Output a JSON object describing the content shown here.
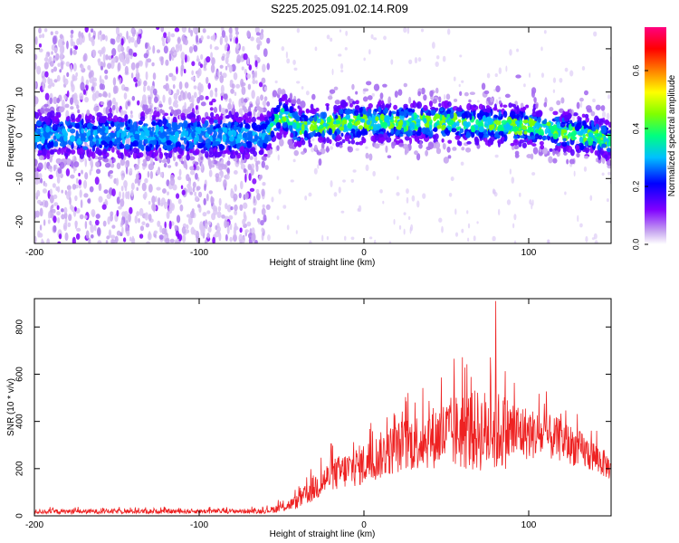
{
  "title": "S225.2025.091.02.14.R09",
  "chart_data": [
    {
      "type": "heatmap",
      "title": "",
      "xlabel": "Height of straight line (km)",
      "ylabel": "Frequency (Hz)",
      "xlim": [
        -200,
        150
      ],
      "ylim": [
        -25,
        25
      ],
      "xticks": [
        -200,
        -100,
        0,
        100
      ],
      "yticks": [
        -20,
        -10,
        0,
        10,
        20
      ],
      "colorbar": {
        "label": "Normalized spectral amplitude",
        "range": [
          0,
          0.75
        ],
        "ticks": [
          0.0,
          0.2,
          0.4,
          0.6
        ],
        "tick_labels": [
          "0.0",
          "0.2",
          "0.4",
          "0.6"
        ],
        "colors": [
          "#ffffff",
          "#c7a6f0",
          "#8000ff",
          "#0000ff",
          "#00c0ff",
          "#00ff80",
          "#80ff00",
          "#ffff00",
          "#ff8000",
          "#ff0000",
          "#ff0080"
        ]
      },
      "ridge_center_hz": [
        {
          "x": -200,
          "y": 0
        },
        {
          "x": -60,
          "y": 0
        },
        {
          "x": -50,
          "y": 5
        },
        {
          "x": -40,
          "y": 2
        },
        {
          "x": 0,
          "y": 3
        },
        {
          "x": 50,
          "y": 3
        },
        {
          "x": 100,
          "y": 2
        },
        {
          "x": 150,
          "y": -1
        }
      ]
    },
    {
      "type": "line",
      "title": "",
      "xlabel": "Height of straight line (km)",
      "ylabel": "SNR (10 * v/v)",
      "xlim": [
        -200,
        150
      ],
      "ylim": [
        0,
        920
      ],
      "xticks": [
        -200,
        -100,
        0,
        100
      ],
      "yticks": [
        0,
        200,
        400,
        600,
        800
      ],
      "series": [
        {
          "color": "#ee2222",
          "envelope": [
            {
              "x": -200,
              "mean": 18,
              "spread": 10
            },
            {
              "x": -60,
              "mean": 20,
              "spread": 10
            },
            {
              "x": -50,
              "mean": 35,
              "spread": 20
            },
            {
              "x": -40,
              "mean": 60,
              "spread": 30
            },
            {
              "x": -30,
              "mean": 120,
              "spread": 60
            },
            {
              "x": -20,
              "mean": 170,
              "spread": 70
            },
            {
              "x": 0,
              "mean": 220,
              "spread": 90
            },
            {
              "x": 20,
              "mean": 290,
              "spread": 110
            },
            {
              "x": 40,
              "mean": 330,
              "spread": 130
            },
            {
              "x": 60,
              "mean": 360,
              "spread": 170
            },
            {
              "x": 80,
              "mean": 360,
              "spread": 180
            },
            {
              "x": 100,
              "mean": 350,
              "spread": 110
            },
            {
              "x": 120,
              "mean": 320,
              "spread": 90
            },
            {
              "x": 140,
              "mean": 250,
              "spread": 70
            },
            {
              "x": 150,
              "mean": 200,
              "spread": 50
            }
          ],
          "peak": {
            "x": 80,
            "y": 910
          }
        }
      ]
    }
  ]
}
